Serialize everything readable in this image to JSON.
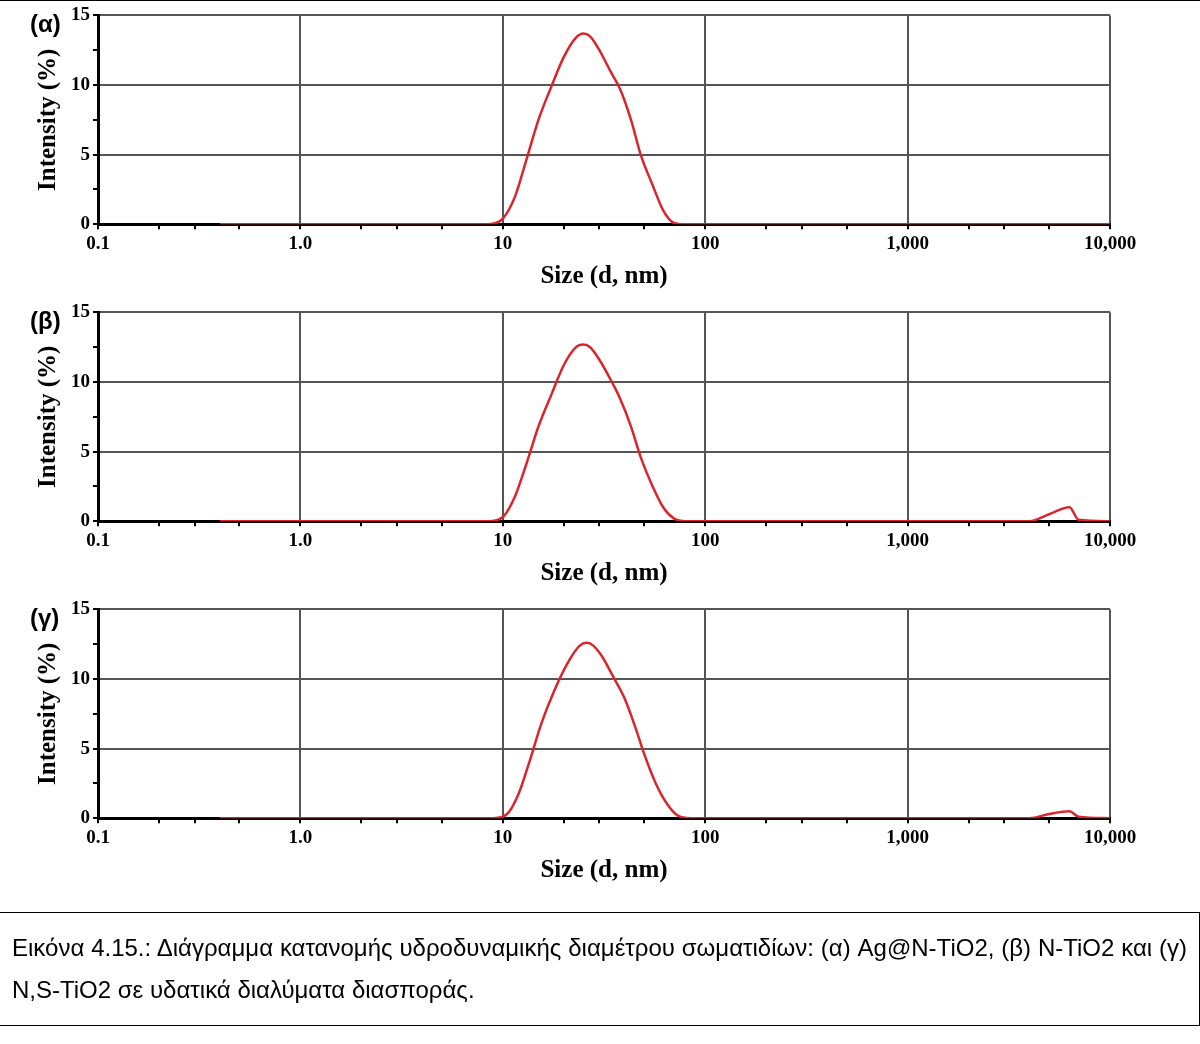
{
  "chart_data": [
    {
      "type": "line",
      "title": "(α)",
      "xlabel": "Size (d, nm)",
      "ylabel": "Intensity (%)",
      "log": "x",
      "grid": true,
      "xlim": [
        0.1,
        10000
      ],
      "xticks": [
        0.1,
        {
          "value": 0.2,
          "label": null
        },
        {
          "value": 0.3,
          "label": null
        },
        {
          "value": 0.5,
          "label": null
        },
        {
          "value": 1,
          "label": "1.0"
        },
        {
          "value": 2,
          "label": null
        },
        {
          "value": 3,
          "label": null
        },
        {
          "value": 5,
          "label": null
        },
        10,
        {
          "value": 20,
          "label": null
        },
        {
          "value": 30,
          "label": null
        },
        {
          "value": 50,
          "label": null
        },
        100,
        {
          "value": 200,
          "label": null
        },
        {
          "value": 300,
          "label": null
        },
        {
          "value": 500,
          "label": null
        },
        {
          "value": 1000,
          "label": "1,000"
        },
        {
          "value": 2000,
          "label": null
        },
        {
          "value": 3000,
          "label": null
        },
        {
          "value": 5000,
          "label": null
        },
        {
          "value": 10000,
          "label": "10,000"
        }
      ],
      "ylim": [
        0,
        15
      ],
      "yticks": [
        0,
        {
          "value": 2.5,
          "label": null
        },
        5,
        {
          "value": 7.5,
          "label": null
        },
        10,
        {
          "value": 12.5,
          "label": null
        },
        15
      ],
      "series": [
        {
          "color": "#d9262c",
          "x": [
            0.4,
            1,
            3,
            8.5,
            10,
            11.5,
            13,
            15,
            17.5,
            20,
            23,
            25,
            27,
            30,
            34,
            38,
            43,
            48,
            55,
            62,
            70,
            80,
            100,
            1000,
            10000
          ],
          "values": [
            0,
            0,
            0,
            0,
            0.4,
            2,
            4.5,
            7.5,
            10,
            12,
            13.4,
            13.7,
            13.5,
            12.5,
            11,
            9.7,
            7.5,
            5,
            2.8,
            1,
            0.1,
            0,
            0,
            0,
            0
          ]
        }
      ]
    },
    {
      "type": "line",
      "title": "(β)",
      "xlabel": "Size (d, nm)",
      "ylabel": "Intensity (%)",
      "log": "x",
      "grid": true,
      "xlim": [
        0.1,
        10000
      ],
      "xticks": [
        0.1,
        {
          "value": 0.2,
          "label": null
        },
        {
          "value": 0.3,
          "label": null
        },
        {
          "value": 0.5,
          "label": null
        },
        {
          "value": 1,
          "label": "1.0"
        },
        {
          "value": 2,
          "label": null
        },
        {
          "value": 3,
          "label": null
        },
        {
          "value": 5,
          "label": null
        },
        10,
        {
          "value": 20,
          "label": null
        },
        {
          "value": 30,
          "label": null
        },
        {
          "value": 50,
          "label": null
        },
        100,
        {
          "value": 200,
          "label": null
        },
        {
          "value": 300,
          "label": null
        },
        {
          "value": 500,
          "label": null
        },
        {
          "value": 1000,
          "label": "1,000"
        },
        {
          "value": 2000,
          "label": null
        },
        {
          "value": 3000,
          "label": null
        },
        {
          "value": 5000,
          "label": null
        },
        {
          "value": 10000,
          "label": "10,000"
        }
      ],
      "ylim": [
        0,
        15
      ],
      "yticks": [
        0,
        {
          "value": 2.5,
          "label": null
        },
        5,
        {
          "value": 7.5,
          "label": null
        },
        10,
        {
          "value": 12.5,
          "label": null
        },
        15
      ],
      "series": [
        {
          "color": "#d9262c",
          "x": [
            0.4,
            1,
            3,
            8.5,
            10,
            11.5,
            13,
            15,
            17.5,
            20,
            23,
            25,
            27,
            30,
            34,
            38,
            43,
            48,
            55,
            62,
            70,
            80,
            100,
            1000,
            4000,
            5000,
            6300,
            7000,
            10000
          ],
          "values": [
            0,
            0,
            0,
            0,
            0.3,
            1.8,
            4,
            6.8,
            9.2,
            11.2,
            12.5,
            12.7,
            12.5,
            11.6,
            10.2,
            8.8,
            6.8,
            4.6,
            2.5,
            1,
            0.2,
            0,
            0,
            0,
            0,
            0.5,
            1,
            0.1,
            0
          ]
        }
      ]
    },
    {
      "type": "line",
      "title": "(γ)",
      "xlabel": "Size (d, nm)",
      "ylabel": "Intensity (%)",
      "log": "x",
      "grid": true,
      "xlim": [
        0.1,
        10000
      ],
      "xticks": [
        0.1,
        {
          "value": 0.2,
          "label": null
        },
        {
          "value": 0.3,
          "label": null
        },
        {
          "value": 0.5,
          "label": null
        },
        {
          "value": 1,
          "label": "1.0"
        },
        {
          "value": 2,
          "label": null
        },
        {
          "value": 3,
          "label": null
        },
        {
          "value": 5,
          "label": null
        },
        10,
        {
          "value": 20,
          "label": null
        },
        {
          "value": 30,
          "label": null
        },
        {
          "value": 50,
          "label": null
        },
        100,
        {
          "value": 200,
          "label": null
        },
        {
          "value": 300,
          "label": null
        },
        {
          "value": 500,
          "label": null
        },
        {
          "value": 1000,
          "label": "1,000"
        },
        {
          "value": 2000,
          "label": null
        },
        {
          "value": 3000,
          "label": null
        },
        {
          "value": 5000,
          "label": null
        },
        {
          "value": 10000,
          "label": "10,000"
        }
      ],
      "ylim": [
        0,
        15
      ],
      "yticks": [
        0,
        {
          "value": 2.5,
          "label": null
        },
        5,
        {
          "value": 7.5,
          "label": null
        },
        10,
        {
          "value": 12.5,
          "label": null
        },
        15
      ],
      "series": [
        {
          "color": "#d9262c",
          "x": [
            0.4,
            1,
            3,
            9,
            10.5,
            12,
            13.5,
            15.5,
            18,
            21,
            24,
            26,
            28,
            31,
            35,
            40,
            45,
            50,
            57,
            65,
            73,
            85,
            100,
            1000,
            4000,
            5000,
            6300,
            7000,
            10000
          ],
          "values": [
            0,
            0,
            0,
            0,
            0.3,
            1.8,
            4,
            6.8,
            9.2,
            11.2,
            12.4,
            12.6,
            12.4,
            11.6,
            10.2,
            8.6,
            6.6,
            4.6,
            2.5,
            1,
            0.2,
            0,
            0,
            0,
            0,
            0.3,
            0.5,
            0.1,
            0
          ]
        }
      ],
      "annotations": [
        "Εικόνα 4.15.: Διάγραμμα κατανομής υδροδυναμικής διαμέτρου σωματιδίων: (α) Ag@N-TiO2, (β) N-TiO2 και (γ) N,S-TiO2 σε υδατικά διαλύματα διασποράς."
      ]
    }
  ]
}
